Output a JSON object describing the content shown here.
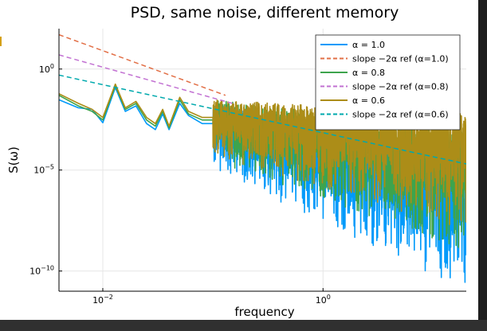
{
  "chart_data": {
    "type": "line",
    "title": "PSD, same noise, different memory",
    "xlabel": "frequency",
    "ylabel": "S(ω)",
    "xscale": "log",
    "yscale": "log",
    "xlim": [
      0.004,
      20
    ],
    "ylim": [
      1e-11,
      100.0
    ],
    "xticks": [
      {
        "value": 0.01,
        "base": "10",
        "exp": "−2"
      },
      {
        "value": 1,
        "base": "10",
        "exp": "0"
      }
    ],
    "yticks": [
      {
        "value": 1,
        "base": "10",
        "exp": "0"
      },
      {
        "value": 1e-05,
        "base": "10",
        "exp": "−5"
      },
      {
        "value": 1e-10,
        "base": "10",
        "exp": "−10"
      }
    ],
    "grid": true,
    "legend_position": "top-right",
    "series": [
      {
        "name": "α = 1.0",
        "kind": "psd",
        "alpha": 1.0,
        "color": "#009AFA",
        "dash": false,
        "low_freq_points": [
          [
            0.004,
            0.03
          ],
          [
            0.006,
            0.012
          ],
          [
            0.008,
            0.01
          ],
          [
            0.01,
            0.0022
          ],
          [
            0.013,
            0.12
          ],
          [
            0.016,
            0.008
          ],
          [
            0.02,
            0.015
          ],
          [
            0.025,
            0.002
          ],
          [
            0.03,
            0.001
          ],
          [
            0.035,
            0.006
          ],
          [
            0.04,
            0.001
          ],
          [
            0.05,
            0.02
          ],
          [
            0.06,
            0.005
          ],
          [
            0.08,
            0.002
          ],
          [
            0.1,
            0.002
          ]
        ],
        "band_mid_start": 0.002,
        "band_mid_end": 1e-06,
        "band_top_start": 0.02,
        "band_top_end": 5e-05,
        "band_bottom_start": 1e-05,
        "band_bottom_end": 1e-11
      },
      {
        "name": "slope −2α ref (α=1.0)",
        "kind": "ref",
        "alpha": 1.0,
        "color": "#E26F46",
        "dash": true,
        "x": [
          0.004,
          0.13
        ],
        "y": [
          50,
          0.05
        ]
      },
      {
        "name": "α = 0.8",
        "kind": "psd",
        "alpha": 0.8,
        "color": "#3DA44D",
        "dash": false,
        "low_freq_points": [
          [
            0.004,
            0.05
          ],
          [
            0.006,
            0.015
          ],
          [
            0.008,
            0.008
          ],
          [
            0.01,
            0.003
          ],
          [
            0.013,
            0.15
          ],
          [
            0.016,
            0.01
          ],
          [
            0.02,
            0.02
          ],
          [
            0.025,
            0.003
          ],
          [
            0.03,
            0.0015
          ],
          [
            0.035,
            0.008
          ],
          [
            0.04,
            0.0012
          ],
          [
            0.05,
            0.03
          ],
          [
            0.06,
            0.006
          ],
          [
            0.08,
            0.003
          ],
          [
            0.1,
            0.003
          ]
        ],
        "band_mid_start": 0.003,
        "band_mid_end": 3e-05,
        "band_top_start": 0.03,
        "band_top_end": 0.001,
        "band_bottom_start": 3e-05,
        "band_bottom_end": 1e-09
      },
      {
        "name": "slope −2α ref (α=0.8)",
        "kind": "ref",
        "alpha": 0.8,
        "color": "#C271D2",
        "dash": true,
        "x": [
          0.004,
          0.15
        ],
        "y": [
          5,
          0.02
        ]
      },
      {
        "name": "α = 0.6",
        "kind": "psd",
        "alpha": 0.6,
        "color": "#AC8D18",
        "dash": false,
        "low_freq_points": [
          [
            0.004,
            0.06
          ],
          [
            0.006,
            0.02
          ],
          [
            0.008,
            0.01
          ],
          [
            0.01,
            0.004
          ],
          [
            0.013,
            0.18
          ],
          [
            0.016,
            0.012
          ],
          [
            0.02,
            0.025
          ],
          [
            0.025,
            0.004
          ],
          [
            0.03,
            0.002
          ],
          [
            0.035,
            0.01
          ],
          [
            0.04,
            0.0015
          ],
          [
            0.05,
            0.04
          ],
          [
            0.06,
            0.008
          ],
          [
            0.08,
            0.004
          ],
          [
            0.1,
            0.004
          ]
        ],
        "band_mid_start": 0.005,
        "band_mid_end": 0.0003,
        "band_top_start": 0.03,
        "band_top_end": 0.006,
        "band_bottom_start": 5e-05,
        "band_bottom_end": 1e-08
      },
      {
        "name": "slope −2α ref (α=0.6)",
        "kind": "ref",
        "alpha": 0.6,
        "color": "#00A9AD",
        "dash": true,
        "x": [
          0.004,
          20
        ],
        "y": [
          0.5,
          2e-05
        ]
      }
    ]
  }
}
